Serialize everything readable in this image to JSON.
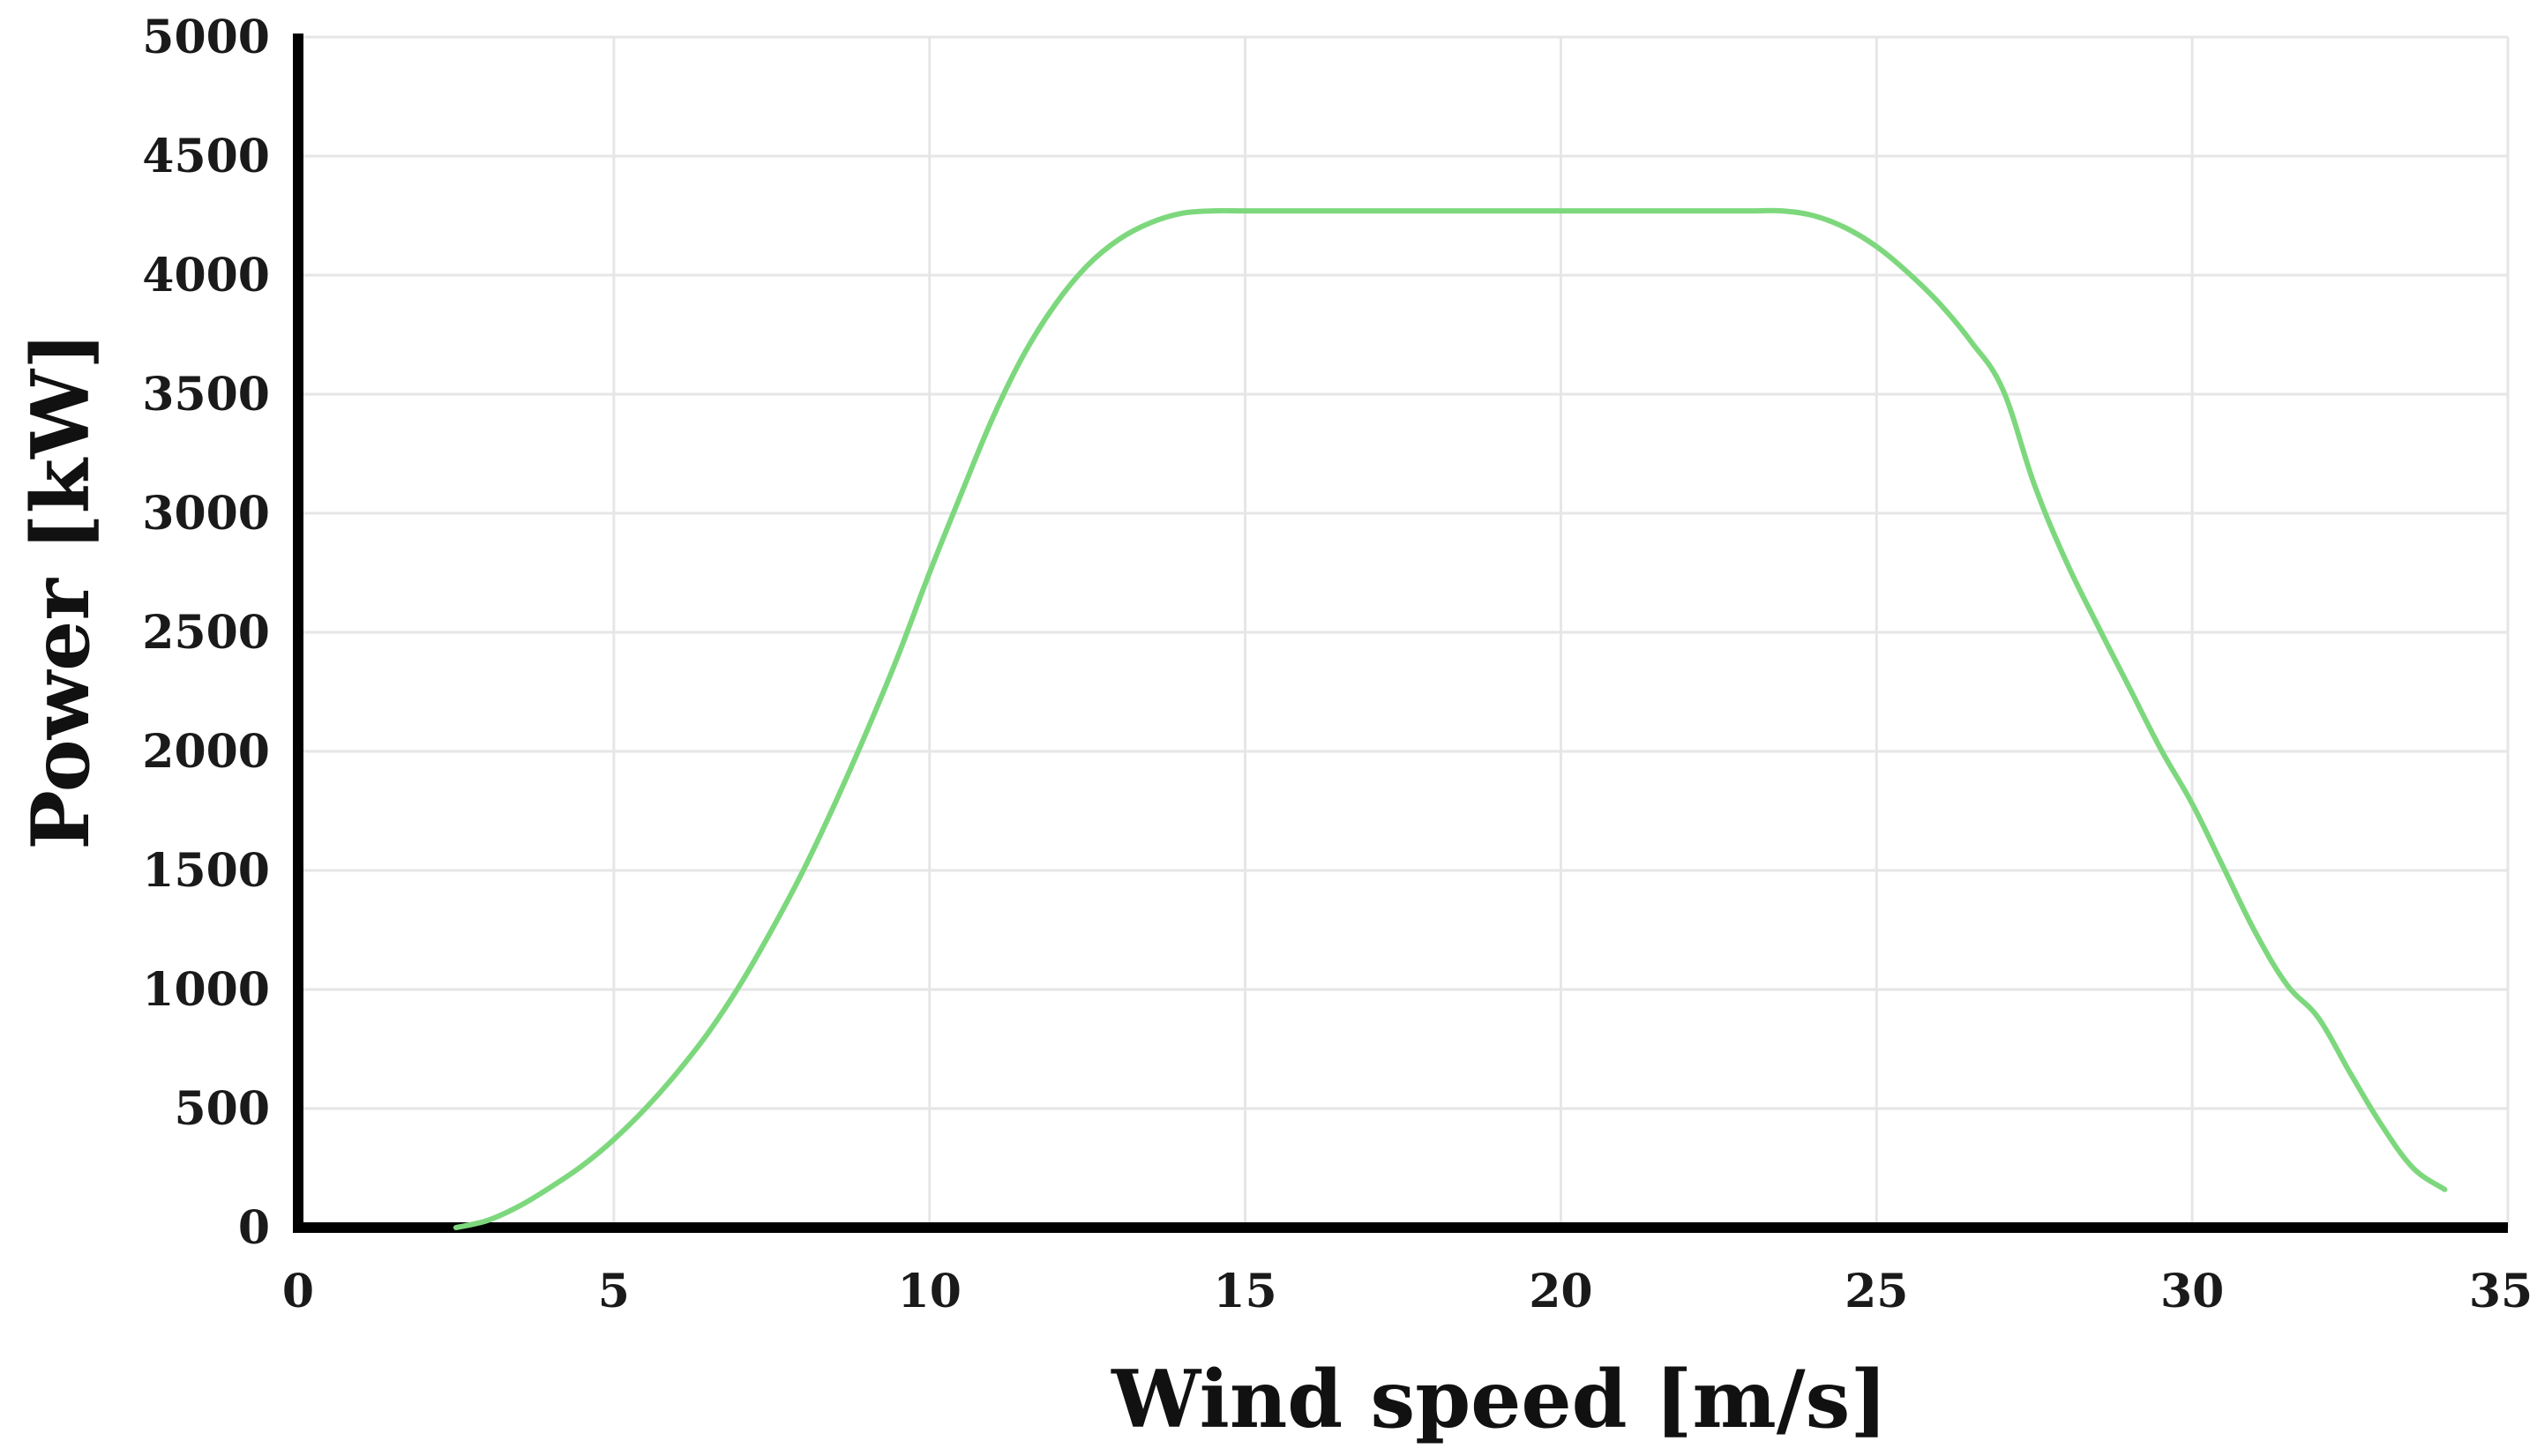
{
  "chart_data": {
    "type": "line",
    "title": "",
    "xlabel": "Wind speed [m/s]",
    "ylabel": "Power [kW]",
    "xlim": [
      0,
      35
    ],
    "ylim": [
      0,
      5000
    ],
    "xticks": [
      0,
      5,
      10,
      15,
      20,
      25,
      30,
      35
    ],
    "yticks": [
      0,
      500,
      1000,
      1500,
      2000,
      2500,
      3000,
      3500,
      4000,
      4500,
      5000
    ],
    "grid": true,
    "legend": "none",
    "series": [
      {
        "color": "#7dd87d",
        "x": [
          2.5,
          3,
          3.5,
          4,
          4.5,
          5,
          5.5,
          6,
          6.5,
          7,
          7.5,
          8,
          8.5,
          9,
          9.5,
          10,
          10.5,
          11,
          11.5,
          12,
          12.5,
          13,
          13.5,
          14,
          14.5,
          15,
          16,
          17,
          18,
          19,
          20,
          21,
          22,
          23,
          23.5,
          24,
          24.5,
          25,
          25.5,
          26,
          26.5,
          27,
          27.5,
          28,
          28.5,
          29,
          29.5,
          30,
          30.5,
          31,
          31.5,
          32,
          32.5,
          33,
          33.5,
          34
        ],
        "y": [
          0,
          30,
          90,
          170,
          260,
          370,
          500,
          650,
          820,
          1020,
          1250,
          1500,
          1780,
          2080,
          2400,
          2750,
          3080,
          3400,
          3670,
          3880,
          4040,
          4150,
          4220,
          4260,
          4270,
          4270,
          4270,
          4270,
          4270,
          4270,
          4270,
          4270,
          4270,
          4270,
          4270,
          4250,
          4200,
          4120,
          4010,
          3880,
          3720,
          3520,
          3120,
          2800,
          2530,
          2270,
          2010,
          1780,
          1510,
          1240,
          1020,
          880,
          650,
          430,
          250,
          160
        ]
      }
    ]
  }
}
